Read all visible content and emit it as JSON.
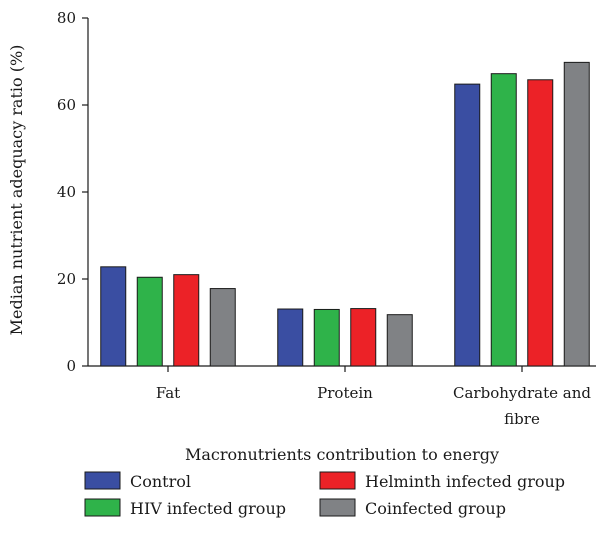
{
  "chart_data": {
    "type": "bar",
    "title": "",
    "xlabel": "Macronutrients contribution to energy",
    "ylabel": "Median nutrient adequacy ratio (%)",
    "ylim": [
      0,
      80
    ],
    "yticks": [
      0,
      20,
      40,
      60,
      80
    ],
    "grid": false,
    "legend_position": "bottom",
    "categories": [
      [
        "Fat"
      ],
      [
        "Protein"
      ],
      [
        "Carbohydrate and",
        "fibre"
      ]
    ],
    "series": [
      {
        "name": "Control",
        "color": "#3a4ea2",
        "values": [
          22.8,
          13.1,
          64.8
        ]
      },
      {
        "name": "HIV infected group",
        "color": "#2fb34a",
        "values": [
          20.4,
          13.0,
          67.2
        ]
      },
      {
        "name": "Helminth infected group",
        "color": "#ec2227",
        "values": [
          21.0,
          13.2,
          65.8
        ]
      },
      {
        "name": "Coinfected group",
        "color": "#808285",
        "values": [
          17.8,
          11.8,
          69.8
        ]
      }
    ]
  }
}
